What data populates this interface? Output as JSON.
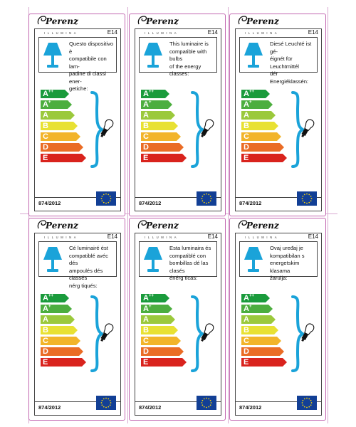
{
  "brand": {
    "name": "Perenz",
    "subline": "ILLUMINA"
  },
  "regulation": "874/2012",
  "socket": "E14",
  "energy_classes": [
    "A++",
    "A+",
    "A",
    "B",
    "C",
    "D",
    "E"
  ],
  "energy_colors": [
    "#1a9b3c",
    "#4cae3f",
    "#9bc93c",
    "#e8e133",
    "#f2b42a",
    "#ea6c25",
    "#d9231d"
  ],
  "accent_color": "#1aa3d9",
  "eu_flag": {
    "field": "#123f95",
    "stars": "#f4d10b"
  },
  "labels": [
    {
      "lang": "it",
      "text": "Questo dispositivo è\ncompatibile con lam-\npadine di classi ener-\ngetiche:"
    },
    {
      "lang": "en",
      "text": "This luminaire is\ncompatible with bulbs\nof the energy classes:"
    },
    {
      "lang": "de",
      "text": "Diesé Leuchté ist gé-\néignét für Leuchtmittél\ndér Energiéklassén:"
    },
    {
      "lang": "fr",
      "text": "Cé luminairé ést\ncompatiblé avéc dés\nampoulés dés classés\nnérg tiqués:"
    },
    {
      "lang": "es",
      "text": "Esta luminaira és\ncompatiblé con\nbombillas dé las clasés\nénérg ticas:"
    },
    {
      "lang": "hr",
      "text": "Ovaj uređaj je\nkompatibilan s\nenergetskim klasama\nžarulja:"
    }
  ]
}
